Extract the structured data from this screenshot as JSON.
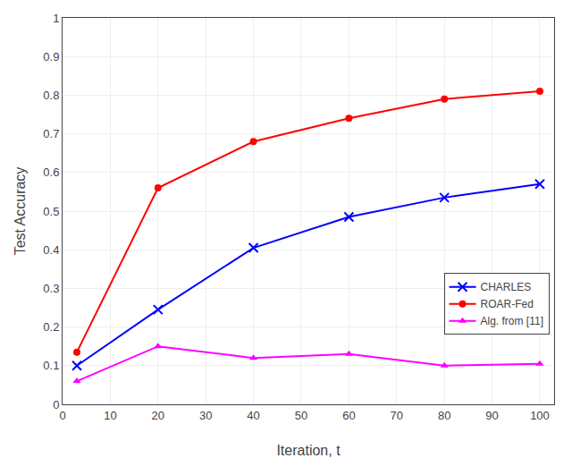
{
  "chart_data": {
    "type": "line",
    "x": [
      3,
      20,
      40,
      60,
      80,
      100
    ],
    "series": [
      {
        "name": "CHARLES",
        "color": "#0000FF",
        "marker": "x",
        "values": [
          0.1,
          0.245,
          0.405,
          0.485,
          0.535,
          0.57
        ]
      },
      {
        "name": "ROAR-Fed",
        "color": "#FF0000",
        "marker": "circle",
        "values": [
          0.135,
          0.56,
          0.68,
          0.74,
          0.79,
          0.81
        ]
      },
      {
        "name": "Alg. from [11]",
        "color": "#FF00FF",
        "marker": "triangle",
        "values": [
          0.06,
          0.15,
          0.12,
          0.13,
          0.1,
          0.105
        ]
      }
    ],
    "xlabel": "Iteration, t",
    "ylabel": "Test Accuracy",
    "xlim": [
      0,
      103
    ],
    "ylim": [
      0,
      1.0
    ],
    "xticks": [
      0,
      10,
      20,
      30,
      40,
      50,
      60,
      70,
      80,
      90,
      100
    ],
    "yticks": [
      0,
      0.1,
      0.2,
      0.3,
      0.4,
      0.5,
      0.6,
      0.7,
      0.8,
      0.9,
      1
    ],
    "grid": true,
    "legend": "lower right"
  }
}
